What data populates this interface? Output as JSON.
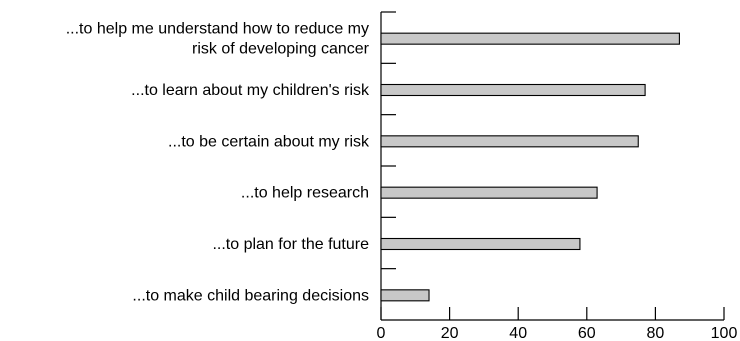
{
  "chart_data": {
    "type": "bar",
    "orientation": "horizontal",
    "title": "",
    "xlabel": "",
    "ylabel": "",
    "categories": [
      [
        "...to help me understand how to reduce my",
        "risk of developing cancer"
      ],
      [
        "...to learn about my children's risk"
      ],
      [
        "...to be certain about my risk"
      ],
      [
        "...to help research"
      ],
      [
        "...to plan for the future"
      ],
      [
        "...to make child bearing decisions"
      ]
    ],
    "values": [
      87,
      77,
      75,
      63,
      58,
      14
    ],
    "xlim": [
      0,
      100
    ],
    "xticks": [
      0,
      20,
      40,
      60,
      80,
      100
    ],
    "grid": false,
    "legend": "none",
    "bar_color": "#c8c8c8",
    "edge_color": "#000000"
  }
}
